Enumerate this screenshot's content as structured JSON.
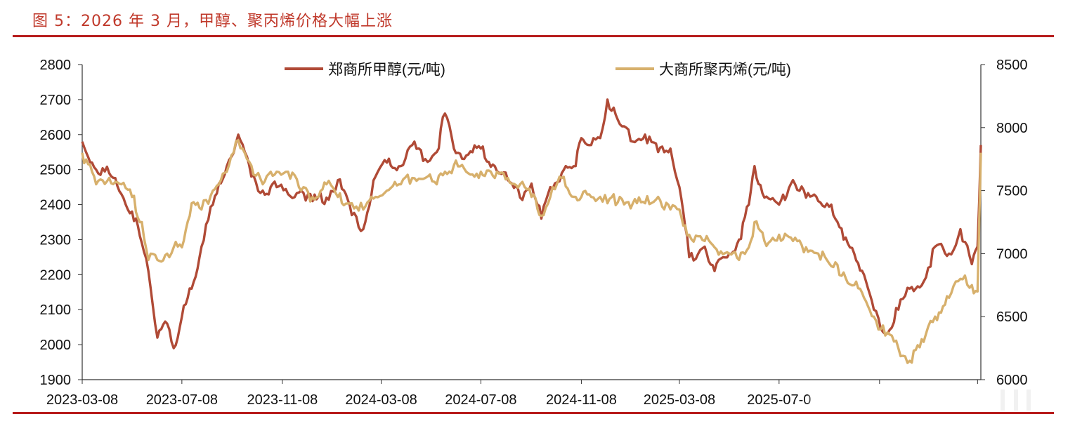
{
  "title": "图 5：2026 年 3 月，甲醇、聚丙烯价格大幅上涨",
  "chart_data": {
    "type": "line",
    "x_tick_labels": [
      "2023-03-08",
      "2023-07-08",
      "2023-11-08",
      "2024-03-08",
      "2024-07-08",
      "2024-11-08",
      "2025-03-08",
      "2025-07-0"
    ],
    "y_left": {
      "min": 1900,
      "max": 2800,
      "ticks": [
        "2800",
        "2700",
        "2600",
        "2500",
        "2400",
        "2300",
        "2200",
        "2100",
        "2000",
        "1900"
      ]
    },
    "y_right": {
      "min": 6000,
      "max": 8500,
      "ticks": [
        "8500",
        "8000",
        "7500",
        "7000",
        "6500",
        "6000"
      ]
    },
    "legend_position": "top",
    "grid": false,
    "series": [
      {
        "name": "郑商所甲醇(元/吨)",
        "axis": "left",
        "color": "#b04a36",
        "x": [
          "2023-03-08",
          "2023-03-25",
          "2023-04-10",
          "2023-04-25",
          "2023-05-08",
          "2023-05-20",
          "2023-05-28",
          "2023-06-08",
          "2023-06-20",
          "2023-06-28",
          "2023-07-08",
          "2023-07-20",
          "2023-08-01",
          "2023-08-15",
          "2023-09-01",
          "2023-09-15",
          "2023-10-01",
          "2023-10-15",
          "2023-11-01",
          "2023-11-15",
          "2023-12-01",
          "2023-12-15",
          "2024-01-01",
          "2024-01-15",
          "2024-02-01",
          "2024-02-15",
          "2024-03-01",
          "2024-03-15",
          "2024-04-01",
          "2024-04-15",
          "2024-05-01",
          "2024-05-15",
          "2024-05-25",
          "2024-06-05",
          "2024-06-20",
          "2024-07-08",
          "2024-07-25",
          "2024-08-10",
          "2024-08-25",
          "2024-09-08",
          "2024-09-20",
          "2024-10-01",
          "2024-10-15",
          "2024-11-01",
          "2024-11-08",
          "2024-11-20",
          "2024-12-01",
          "2024-12-10",
          "2024-12-25",
          "2025-01-10",
          "2025-01-25",
          "2025-02-10",
          "2025-02-25",
          "2025-03-08",
          "2025-03-20",
          "2025-04-08",
          "2025-04-20",
          "2025-05-08",
          "2025-05-20",
          "2025-06-01",
          "2025-06-08",
          "2025-06-20",
          "2025-07-08",
          "2025-07-25",
          "2025-08-10",
          "2025-08-25",
          "2025-09-10",
          "2025-09-25",
          "2025-10-08",
          "2025-10-20",
          "2025-11-01",
          "2025-11-15",
          "2025-12-01",
          "2025-12-15",
          "2026-01-01",
          "2026-01-15",
          "2026-02-01",
          "2026-02-15",
          "2026-03-01",
          "2026-03-08",
          "2026-03-12"
        ],
        "y": [
          2580,
          2500,
          2490,
          2430,
          2380,
          2290,
          2210,
          2020,
          2060,
          1990,
          2080,
          2160,
          2280,
          2400,
          2510,
          2600,
          2480,
          2440,
          2450,
          2430,
          2440,
          2410,
          2420,
          2470,
          2370,
          2330,
          2480,
          2520,
          2510,
          2570,
          2530,
          2550,
          2660,
          2560,
          2540,
          2560,
          2510,
          2470,
          2420,
          2460,
          2360,
          2450,
          2490,
          2510,
          2590,
          2570,
          2590,
          2700,
          2630,
          2580,
          2600,
          2550,
          2560,
          2450,
          2250,
          2280,
          2210,
          2260,
          2300,
          2400,
          2510,
          2420,
          2400,
          2470,
          2420,
          2410,
          2400,
          2300,
          2260,
          2200,
          2100,
          2030,
          2100,
          2160,
          2180,
          2280,
          2260,
          2330,
          2230,
          2280,
          2570
        ]
      },
      {
        "name": "大商所聚丙烯(元/吨)",
        "axis": "right",
        "color": "#d7b06c",
        "x": [
          "2023-03-08",
          "2023-03-25",
          "2023-04-10",
          "2023-04-25",
          "2023-05-08",
          "2023-05-20",
          "2023-05-28",
          "2023-06-08",
          "2023-06-20",
          "2023-06-28",
          "2023-07-08",
          "2023-07-20",
          "2023-08-01",
          "2023-08-15",
          "2023-09-01",
          "2023-09-15",
          "2023-10-01",
          "2023-10-15",
          "2023-11-01",
          "2023-11-15",
          "2023-12-01",
          "2023-12-15",
          "2024-01-01",
          "2024-01-15",
          "2024-02-01",
          "2024-02-15",
          "2024-03-01",
          "2024-03-15",
          "2024-04-01",
          "2024-04-15",
          "2024-05-01",
          "2024-05-15",
          "2024-05-25",
          "2024-06-05",
          "2024-06-20",
          "2024-07-08",
          "2024-07-25",
          "2024-08-10",
          "2024-08-25",
          "2024-09-08",
          "2024-09-20",
          "2024-10-01",
          "2024-10-15",
          "2024-11-01",
          "2024-11-08",
          "2024-11-20",
          "2024-12-01",
          "2024-12-10",
          "2024-12-25",
          "2025-01-10",
          "2025-01-25",
          "2025-02-10",
          "2025-02-25",
          "2025-03-08",
          "2025-03-20",
          "2025-04-08",
          "2025-04-20",
          "2025-05-08",
          "2025-05-20",
          "2025-06-01",
          "2025-06-08",
          "2025-06-20",
          "2025-07-08",
          "2025-07-25",
          "2025-08-10",
          "2025-08-25",
          "2025-09-10",
          "2025-09-25",
          "2025-10-08",
          "2025-10-20",
          "2025-11-01",
          "2025-11-15",
          "2025-12-01",
          "2025-12-15",
          "2026-01-01",
          "2026-01-15",
          "2026-02-01",
          "2026-02-15",
          "2026-03-01",
          "2026-03-08",
          "2026-03-12"
        ],
        "y": [
          7800,
          7550,
          7600,
          7550,
          7450,
          7250,
          6950,
          6950,
          7000,
          7050,
          7050,
          7400,
          7350,
          7500,
          7650,
          7900,
          7700,
          7550,
          7650,
          7650,
          7500,
          7450,
          7550,
          7450,
          7400,
          7350,
          7450,
          7500,
          7550,
          7600,
          7600,
          7550,
          7650,
          7700,
          7650,
          7650,
          7600,
          7600,
          7550,
          7450,
          7300,
          7450,
          7600,
          7450,
          7450,
          7450,
          7450,
          7400,
          7450,
          7400,
          7400,
          7450,
          7350,
          7350,
          7150,
          7100,
          7050,
          7000,
          6950,
          7050,
          7250,
          7100,
          7150,
          7100,
          7050,
          7000,
          6900,
          6850,
          6750,
          6650,
          6500,
          6350,
          6250,
          6150,
          6300,
          6500,
          6650,
          6800,
          6750,
          6700,
          7800
        ]
      }
    ]
  }
}
